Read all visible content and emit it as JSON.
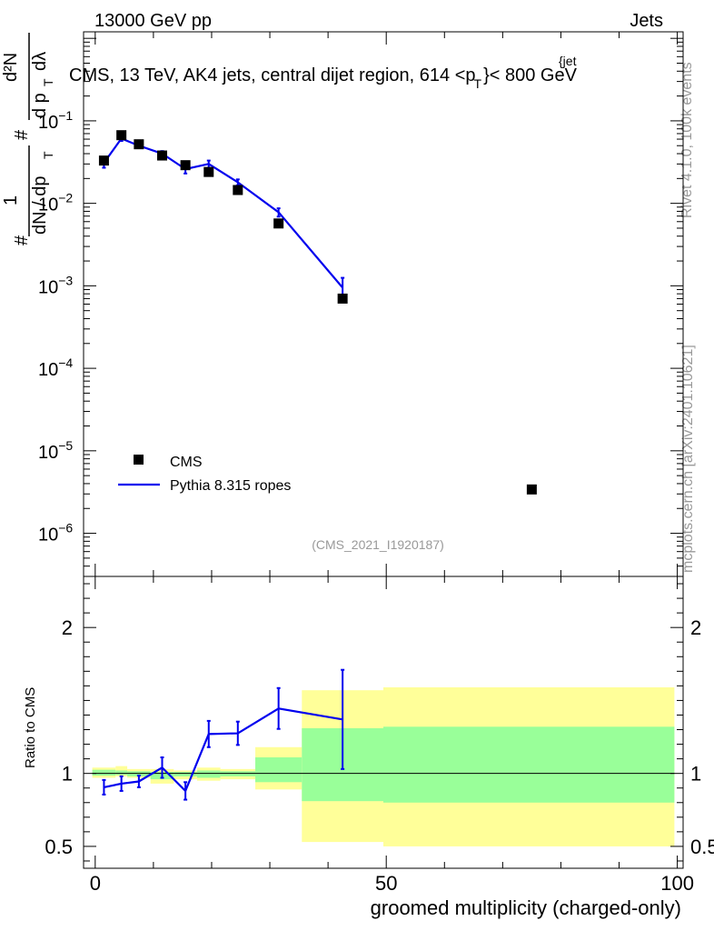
{
  "header": {
    "left": "13000 GeV pp",
    "right": "Jets"
  },
  "side": {
    "rivet": "Rivet 4.1.0,  100k events",
    "mcplots": "mcplots.cern.ch [arXiv:2401.10621]"
  },
  "analysis_id": "(CMS_2021_I1920187)",
  "chart_data": [
    {
      "type": "scatter",
      "title": "CMS, 13 TeV, AK4 jets, central dijet region, 614 < p_T^{jet} < 800 GeV",
      "title_parts": {
        "main": "CMS, 13 TeV, AK4 jets, central dijet region, 614 <p",
        "sub": "T",
        "sup": "{jet",
        "end": "}< 800 GeV"
      },
      "yscale": "log",
      "ylim": [
        3e-07,
        1.2
      ],
      "xlim": [
        -2,
        101
      ],
      "ylabel": "1/(dN/dp_T) d²N/(dp_T dλ)",
      "ylabel_parts": {
        "hash_top": "#",
        "one": "1",
        "num": "d²N",
        "den": "dN / dp",
        "dp": "d p",
        "dlam": "dλ",
        "T": "T"
      },
      "yticks": [
        {
          "value": 0.1,
          "label": "10",
          "exp": "−1"
        },
        {
          "value": 0.01,
          "label": "10",
          "exp": "−2"
        },
        {
          "value": 0.001,
          "label": "10",
          "exp": "−3"
        },
        {
          "value": 0.0001,
          "label": "10",
          "exp": "−4"
        },
        {
          "value": 1e-05,
          "label": "10",
          "exp": "−5"
        },
        {
          "value": 1e-06,
          "label": "10",
          "exp": "−6"
        }
      ],
      "legend": {
        "placement": "bottom-left",
        "entries": [
          "CMS",
          "Pythia 8.315 ropes"
        ]
      },
      "series": [
        {
          "name": "CMS",
          "style": "markers",
          "x": [
            1.5,
            4.5,
            7.5,
            11.5,
            15.5,
            19.5,
            24.5,
            31.5,
            42.5,
            75.0
          ],
          "y": [
            0.033,
            0.067,
            0.052,
            0.038,
            0.029,
            0.024,
            0.0145,
            0.0057,
            0.0007,
            3.4e-06
          ]
        },
        {
          "name": "Pythia 8.315 ropes",
          "style": "line",
          "color": "#0000ee",
          "x": [
            1.5,
            4.5,
            7.5,
            11.5,
            15.5,
            19.5,
            24.5,
            31.5,
            42.5
          ],
          "y": [
            0.031,
            0.061,
            0.05,
            0.04,
            0.026,
            0.03,
            0.018,
            0.0078,
            0.00095
          ],
          "yerr": [
            0.004,
            0.004,
            0.003,
            0.003,
            0.003,
            0.003,
            0.0015,
            0.0009,
            0.0003
          ]
        }
      ]
    },
    {
      "type": "line",
      "ylabel": "Ratio to CMS",
      "xlabel": "groomed multiplicity (charged-only)",
      "xlim": [
        -2,
        101
      ],
      "ylim": [
        0.35,
        2.35
      ],
      "xticks": [
        0,
        50,
        100
      ],
      "yticks": [
        0.5,
        1,
        2
      ],
      "bands": [
        {
          "x0": -0.5,
          "x1": 3.5,
          "y_lo": 0.97,
          "y_hi": 1.04,
          "g_lo": 0.985,
          "g_hi": 1.025
        },
        {
          "x0": 3.5,
          "x1": 5.5,
          "y_lo": 0.98,
          "y_hi": 1.05,
          "g_lo": 0.99,
          "g_hi": 1.02
        },
        {
          "x0": 5.5,
          "x1": 9.5,
          "y_lo": 0.97,
          "y_hi": 1.03,
          "g_lo": 0.98,
          "g_hi": 1.015
        },
        {
          "x0": 9.5,
          "x1": 13.5,
          "y_lo": 0.93,
          "y_hi": 1.03,
          "g_lo": 0.96,
          "g_hi": 1.01
        },
        {
          "x0": 13.5,
          "x1": 17.5,
          "y_lo": 0.96,
          "y_hi": 1.02,
          "g_lo": 0.98,
          "g_hi": 1.01
        },
        {
          "x0": 17.5,
          "x1": 21.5,
          "y_lo": 0.95,
          "y_hi": 1.04,
          "g_lo": 0.97,
          "g_hi": 1.02
        },
        {
          "x0": 21.5,
          "x1": 27.5,
          "y_lo": 0.96,
          "y_hi": 1.03,
          "g_lo": 0.98,
          "g_hi": 1.015
        },
        {
          "x0": 27.5,
          "x1": 35.5,
          "y_lo": 0.89,
          "y_hi": 1.18,
          "g_lo": 0.94,
          "g_hi": 1.11
        },
        {
          "x0": 35.5,
          "x1": 49.5,
          "y_lo": 0.53,
          "y_hi": 1.57,
          "g_lo": 0.81,
          "g_hi": 1.31
        },
        {
          "x0": 49.5,
          "x1": 99.5,
          "y_lo": 0.5,
          "y_hi": 1.59,
          "g_lo": 0.8,
          "g_hi": 1.32
        }
      ],
      "series": [
        {
          "name": "Pythia 8.315 ropes",
          "color": "#0000ee",
          "x": [
            1.5,
            4.5,
            7.5,
            11.5,
            15.5,
            19.5,
            24.5,
            31.5,
            42.5
          ],
          "y": [
            0.905,
            0.93,
            0.945,
            1.04,
            0.88,
            1.27,
            1.275,
            1.445,
            1.37
          ],
          "yerr": [
            0.05,
            0.05,
            0.04,
            0.07,
            0.06,
            0.09,
            0.08,
            0.14,
            0.34
          ]
        }
      ]
    }
  ]
}
